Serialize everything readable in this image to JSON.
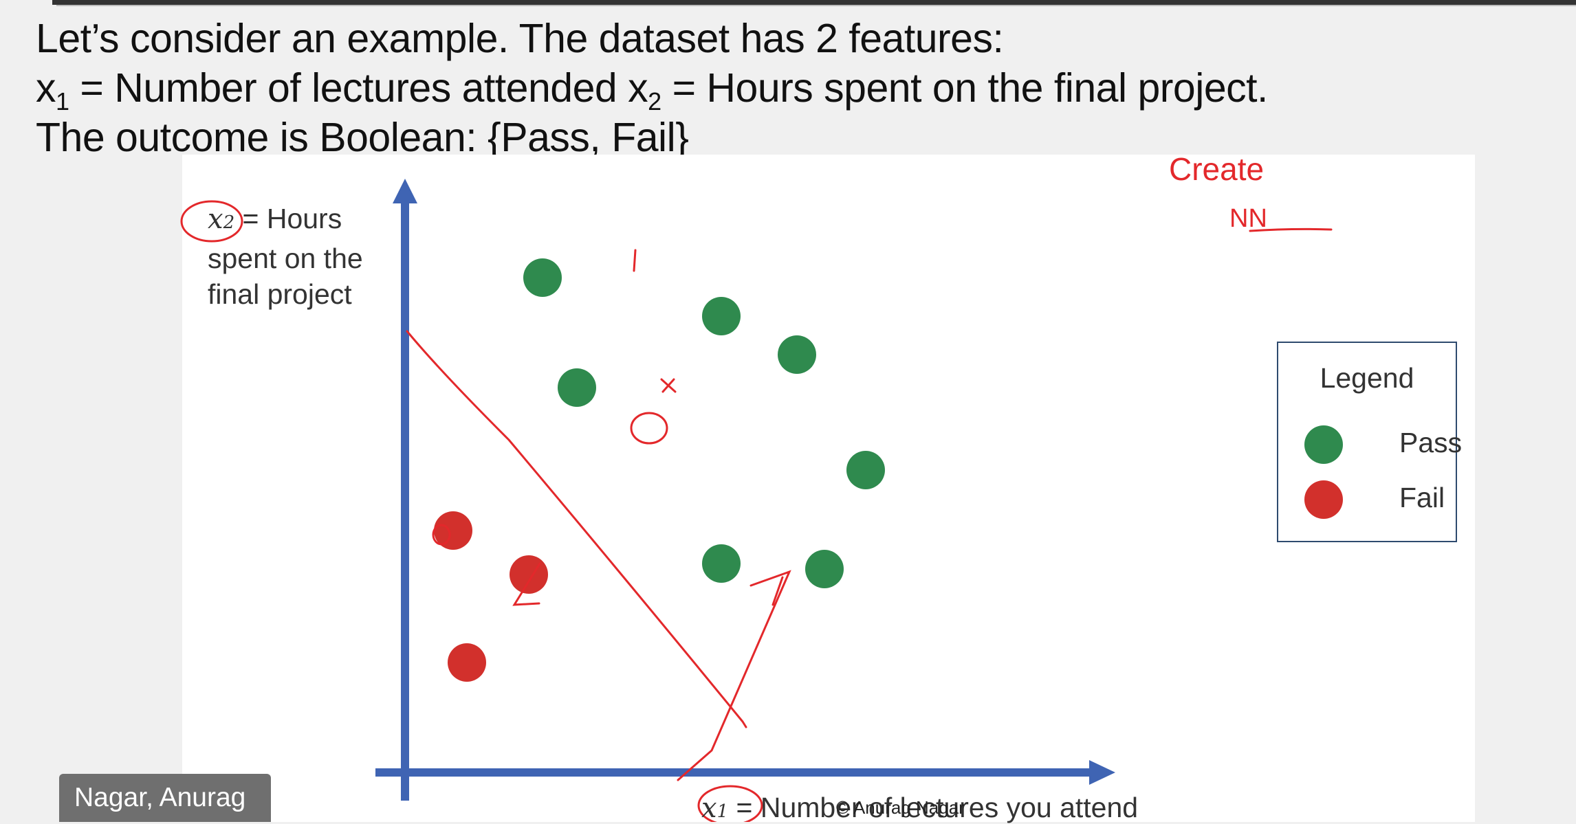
{
  "slide": {
    "line1": "Let’s consider an example. The dataset has 2 features:",
    "line2_x1": "x",
    "line2_x1_sub": "1",
    "line2_mid": " = Number of lectures attended x",
    "line2_x2_sub": "2",
    "line2_end": " = Hours spent on the final project.",
    "line3": "The outcome is Boolean: {Pass, Fail}"
  },
  "ylabel": {
    "var": "x",
    "sub": "2",
    "text1": " = Hours",
    "text2": "spent on the",
    "text3": "final project"
  },
  "xlabel": {
    "var": "x",
    "sub": "1",
    "text": " = Number of lectures you attend"
  },
  "watermark": "© Anurag Nagar",
  "legend": {
    "title": "Legend",
    "pass_label": "Pass",
    "fail_label": "Fail",
    "pass_color": "#2f8a4e",
    "fail_color": "#d2302c"
  },
  "annotations": {
    "create": "Create",
    "nn": "NN",
    "label_top": "1",
    "label_mark": "x",
    "label_zero": "0",
    "label_l": "L"
  },
  "chart_data": {
    "type": "scatter",
    "xlabel": "x1 = Number of lectures you attend",
    "ylabel": "x2 = Hours spent on the final project",
    "series": [
      {
        "name": "Pass",
        "color": "#2f8a4e",
        "points": [
          [
            2.0,
            9.0
          ],
          [
            4.6,
            8.3
          ],
          [
            5.7,
            7.6
          ],
          [
            2.5,
            7.0
          ],
          [
            6.7,
            5.5
          ],
          [
            4.6,
            3.8
          ],
          [
            6.1,
            3.7
          ]
        ]
      },
      {
        "name": "Fail",
        "color": "#d2302c",
        "points": [
          [
            0.7,
            4.4
          ],
          [
            1.8,
            3.6
          ],
          [
            0.9,
            2.0
          ]
        ]
      }
    ],
    "xlim": [
      0,
      10
    ],
    "ylim": [
      0,
      10
    ]
  },
  "name_tag": "Nagar, Anurag"
}
